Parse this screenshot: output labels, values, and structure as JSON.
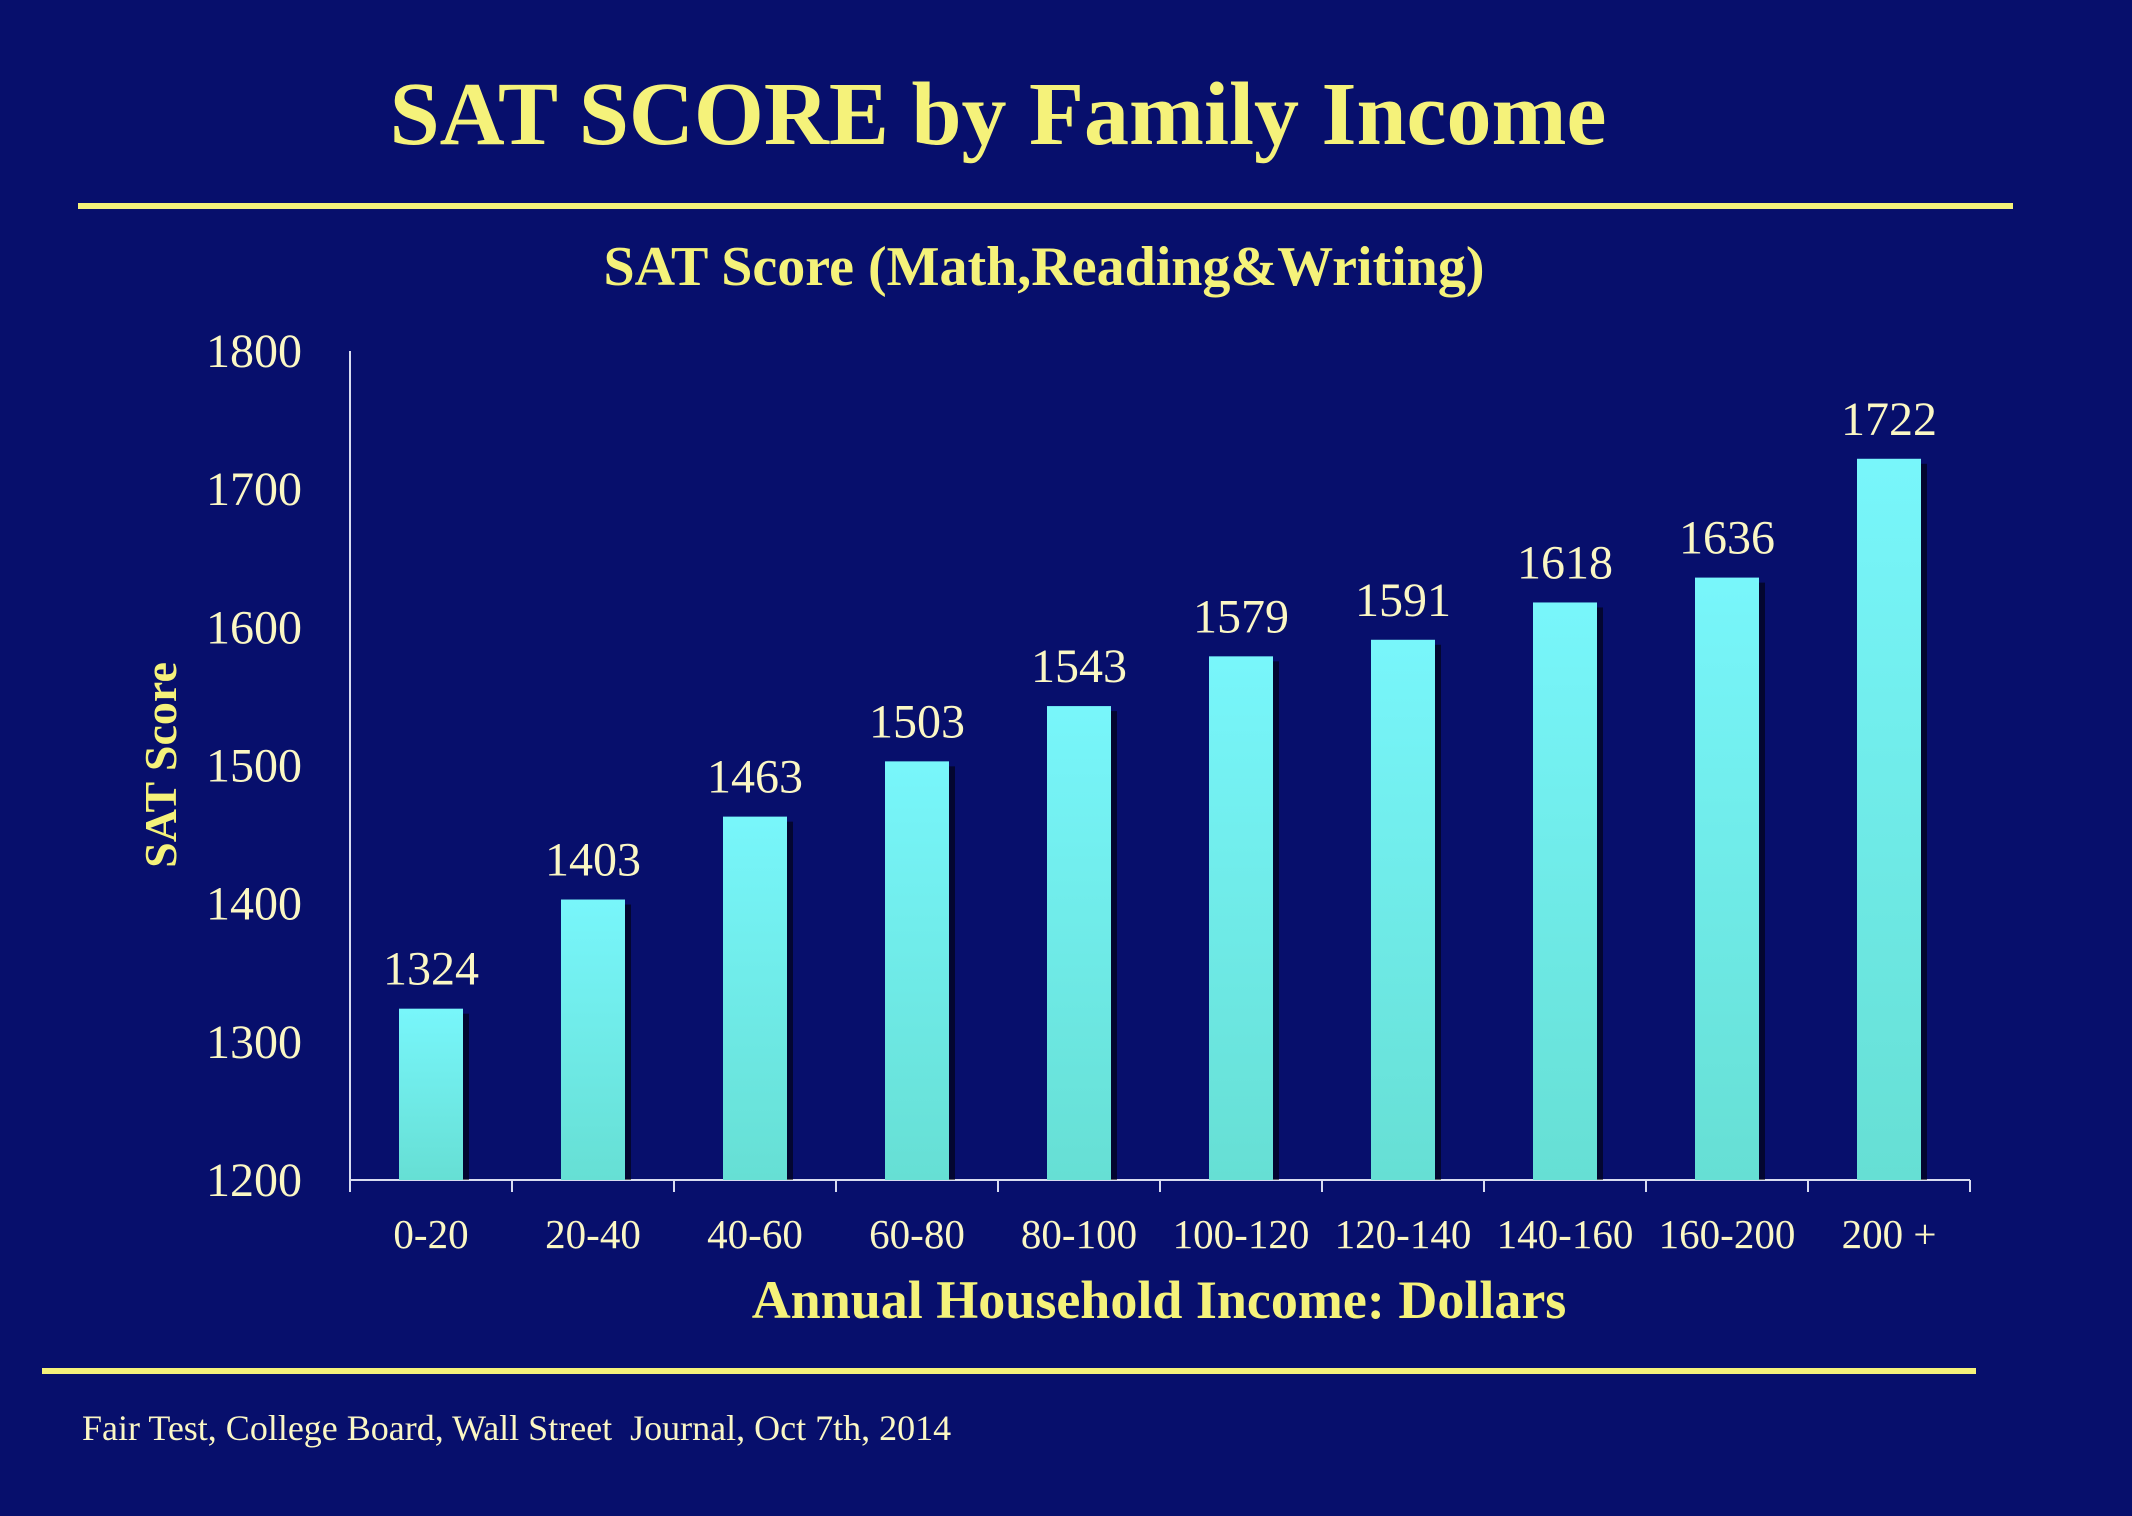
{
  "slide": {
    "title": "SAT SCORE by Family Income",
    "source": "Fair Test, College Board, Wall Street  Journal, Oct 7th, 2014"
  },
  "colors": {
    "background": "#070f6c",
    "accent": "#f5f27a",
    "bar_top": "#78f6fb",
    "bar_bottom": "#66dfd4",
    "axis": "#d8dcf0",
    "tick_text": "#fbf7c4"
  },
  "chart_data": {
    "type": "bar",
    "title": "SAT Score (Math,Reading&Writing)",
    "xlabel": "Annual Household Income: Dollars",
    "ylabel": "SAT Score",
    "ylim": [
      1200,
      1800
    ],
    "yticks": [
      1200,
      1300,
      1400,
      1500,
      1600,
      1700,
      1800
    ],
    "categories": [
      "0-20",
      "20-40",
      "40-60",
      "60-80",
      "80-100",
      "100-120",
      "120-140",
      "140-160",
      "160-200",
      "200 +"
    ],
    "values": [
      1324,
      1403,
      1463,
      1503,
      1543,
      1579,
      1591,
      1618,
      1636,
      1722
    ],
    "data_labels": [
      "1324",
      "1403",
      "1463",
      "1503",
      "1543",
      "1579",
      "1591",
      "1618",
      "1636",
      "1722"
    ],
    "grid": false,
    "legend": "none"
  }
}
